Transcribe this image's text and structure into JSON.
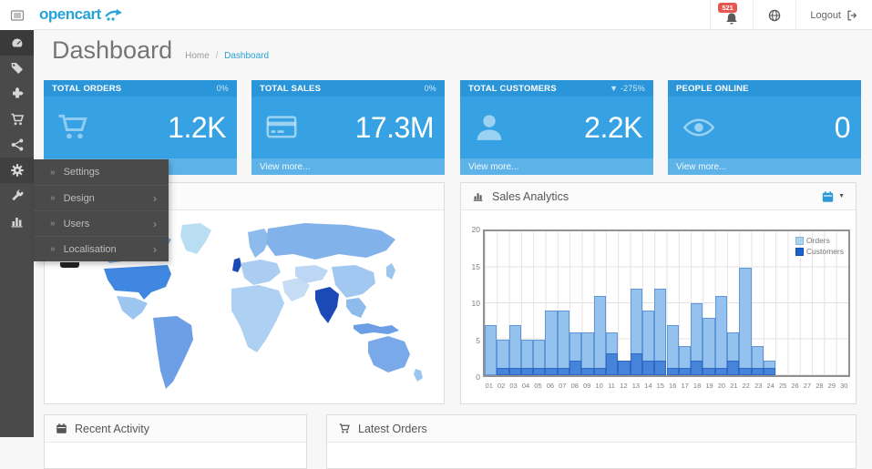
{
  "header": {
    "logo_text": "opencart",
    "notification_badge": "521",
    "logout_label": "Logout"
  },
  "glyphs": {
    "flyout_arrow": "»",
    "submenu_chevron": "›",
    "calendar_caret": "▼"
  },
  "sidebar": {
    "items": [
      {
        "id": "dashboard",
        "icon": "tachometer-icon",
        "active": true
      },
      {
        "id": "catalog",
        "icon": "tag-icon"
      },
      {
        "id": "extensions",
        "icon": "puzzle-icon"
      },
      {
        "id": "sales",
        "icon": "cart-icon"
      },
      {
        "id": "marketing",
        "icon": "share-icon"
      },
      {
        "id": "system",
        "icon": "gear-icon",
        "open": true
      },
      {
        "id": "tools",
        "icon": "wrench-icon"
      },
      {
        "id": "reports",
        "icon": "bar-chart-icon"
      }
    ],
    "flyout": {
      "items": [
        {
          "label": "Settings",
          "submenu": ""
        },
        {
          "label": "Design",
          "submenu": "›"
        },
        {
          "label": "Users",
          "submenu": "›"
        },
        {
          "label": "Localisation",
          "submenu": "›"
        }
      ]
    }
  },
  "page": {
    "title": "Dashboard",
    "breadcrumb_home": "Home",
    "breadcrumb_sep": "/",
    "breadcrumb_current": "Dashboard"
  },
  "tiles": [
    {
      "title": "TOTAL ORDERS",
      "change": "0%",
      "value": "1.2K",
      "icon": "cart-icon",
      "footer": "View more..."
    },
    {
      "title": "TOTAL SALES",
      "change": "0%",
      "value": "17.3M",
      "icon": "credit-card-icon",
      "footer": "View more..."
    },
    {
      "title": "TOTAL CUSTOMERS",
      "change": "▼ -275%",
      "value": "2.2K",
      "icon": "user-icon",
      "footer": "View more..."
    },
    {
      "title": "PEOPLE ONLINE",
      "change": "",
      "value": "0",
      "icon": "eye-icon",
      "footer": "View more..."
    }
  ],
  "panels": {
    "map": {
      "title": ""
    },
    "sales_analytics": {
      "title": "Sales Analytics"
    },
    "recent_activity": {
      "title": "Recent Activity"
    },
    "latest_orders": {
      "title": "Latest Orders"
    }
  },
  "colors": {
    "brand": "#27a3d8",
    "tile_body": "#36a2e3",
    "tile_header": "#2b95d9",
    "tile_footer": "#5db3e8",
    "badge": "#e6574f",
    "sidebar": "#4a4a4a"
  },
  "chart_data": {
    "type": "bar",
    "title": "Sales Analytics",
    "x": [
      "01",
      "02",
      "03",
      "04",
      "05",
      "06",
      "07",
      "08",
      "09",
      "10",
      "11",
      "12",
      "13",
      "14",
      "15",
      "16",
      "17",
      "18",
      "19",
      "20",
      "21",
      "22",
      "23",
      "24",
      "25",
      "26",
      "27",
      "28",
      "29",
      "30"
    ],
    "series": [
      {
        "name": "Orders",
        "color": "#95c1ee",
        "border": "#5f97d8",
        "legend_color": "#a9d4f2",
        "values": [
          7,
          5,
          7,
          5,
          5,
          9,
          9,
          6,
          6,
          11,
          6,
          2,
          12,
          9,
          12,
          7,
          4,
          10,
          8,
          11,
          6,
          15,
          4,
          2,
          0,
          0,
          0,
          0,
          0,
          0
        ]
      },
      {
        "name": "Customers",
        "color": "#4584d9",
        "border": "#2e67c4",
        "legend_color": "#1663cb",
        "values": [
          0,
          1,
          1,
          1,
          1,
          1,
          1,
          2,
          1,
          1,
          3,
          2,
          3,
          2,
          2,
          1,
          1,
          2,
          1,
          1,
          2,
          1,
          1,
          1,
          0,
          0,
          0,
          0,
          0,
          0
        ]
      }
    ],
    "ylim": [
      0,
      20
    ],
    "yticks": [
      0,
      5,
      10,
      15,
      20
    ],
    "xlabel": "",
    "ylabel": "",
    "grid": true,
    "legend_position": "top-right"
  }
}
